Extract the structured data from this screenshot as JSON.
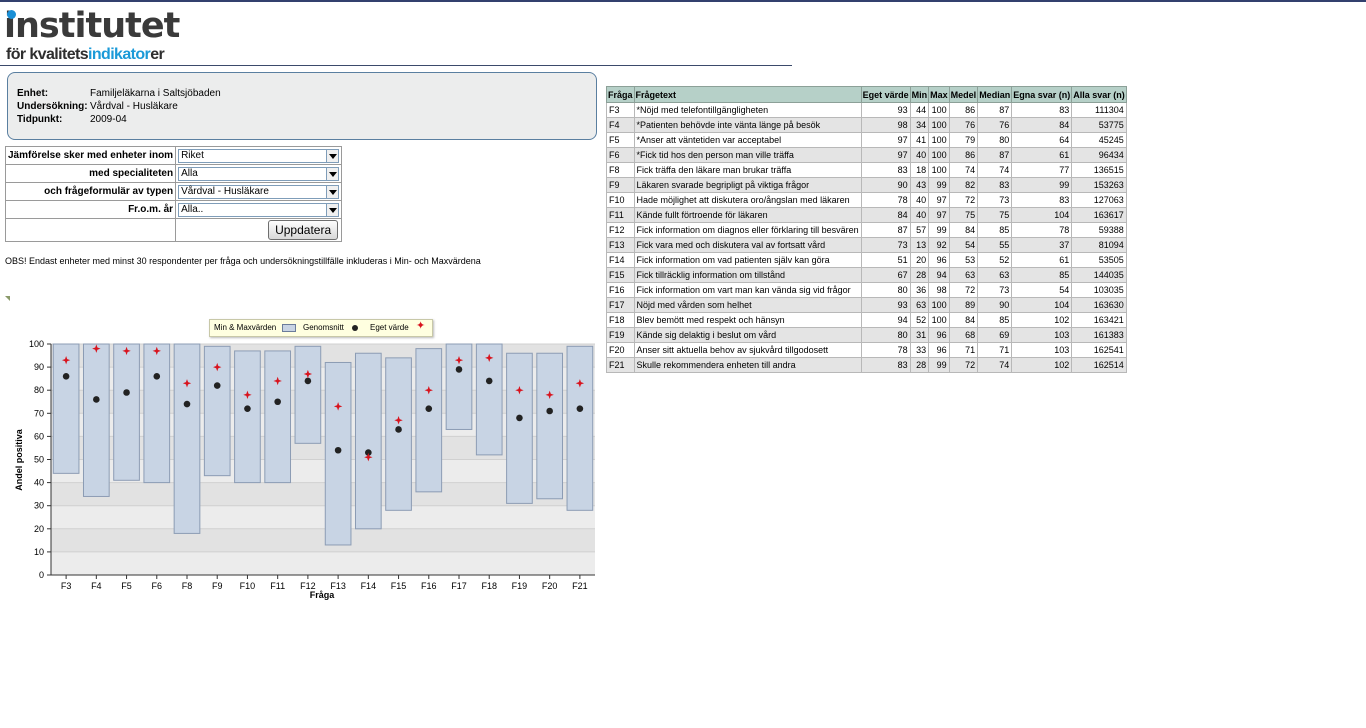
{
  "logo": {
    "line1": "institutet",
    "line2_pre": "för kvalitets",
    "line2_hl": "indikator",
    "line2_post": "er"
  },
  "info": {
    "enhet_label": "Enhet:",
    "enhet_value": "Familjeläkarna i Saltsjöbaden",
    "undersokning_label": "Undersökning:",
    "undersokning_value": "Vårdval - Husläkare",
    "tidpunkt_label": "Tidpunkt:",
    "tidpunkt_value": "2009-04"
  },
  "filters": {
    "compare_label": "Jämförelse sker med enheter inom",
    "compare_value": "Riket",
    "specialty_label": "med specialiteten",
    "specialty_value": "Alla",
    "formtype_label": "och frågeformulär av typen",
    "formtype_value": "Vårdval - Husläkare",
    "year_label": "Fr.o.m. år",
    "year_value": "Alla..",
    "update_button": "Uppdatera"
  },
  "note": "OBS! Endast enheter med minst 30 respondenter per fråga och undersökningstillfälle inkluderas i Min- och Maxvärdena",
  "legend": {
    "minmax": "Min & Maxvärden",
    "avg": "Genomsnitt",
    "own": "Eget värde"
  },
  "chart_data": {
    "type": "bar",
    "xlabel": "Fråga",
    "ylabel": "Andel positiva",
    "ylim": [
      0,
      100
    ],
    "yticks": [
      0,
      10,
      20,
      30,
      40,
      50,
      60,
      70,
      80,
      90,
      100
    ],
    "categories": [
      "F3",
      "F4",
      "F5",
      "F6",
      "F8",
      "F9",
      "F10",
      "F11",
      "F12",
      "F13",
      "F14",
      "F15",
      "F16",
      "F17",
      "F18",
      "F19",
      "F20",
      "F21"
    ],
    "series": [
      {
        "name": "Min & Maxvärden",
        "min": [
          44,
          34,
          41,
          40,
          18,
          43,
          40,
          40,
          57,
          13,
          20,
          28,
          36,
          63,
          52,
          31,
          33,
          28
        ],
        "max": [
          100,
          100,
          100,
          100,
          100,
          99,
          97,
          97,
          99,
          92,
          96,
          94,
          98,
          100,
          100,
          96,
          96,
          99
        ]
      },
      {
        "name": "Genomsnitt",
        "values": [
          86,
          76,
          79,
          86,
          74,
          82,
          72,
          75,
          84,
          54,
          53,
          63,
          72,
          89,
          84,
          68,
          71,
          72
        ]
      },
      {
        "name": "Eget värde",
        "values": [
          93,
          98,
          97,
          97,
          83,
          90,
          78,
          84,
          87,
          73,
          51,
          67,
          80,
          93,
          94,
          80,
          78,
          83
        ]
      }
    ],
    "colors": {
      "range_fill": "#c8d4e4",
      "range_stroke": "#8c9cb4",
      "avg": "#222222",
      "own": "#d8141e"
    }
  },
  "table": {
    "headers": [
      "Fråga",
      "Frågetext",
      "Eget värde",
      "Min",
      "Max",
      "Medel",
      "Median",
      "Egna svar (n)",
      "Alla svar (n)"
    ],
    "rows": [
      [
        "F3",
        "*Nöjd med telefontillgängligheten",
        "93",
        "44",
        "100",
        "86",
        "87",
        "83",
        "111304"
      ],
      [
        "F4",
        "*Patienten behövde inte vänta länge på besök",
        "98",
        "34",
        "100",
        "76",
        "76",
        "84",
        "53775"
      ],
      [
        "F5",
        "*Anser att väntetiden var acceptabel",
        "97",
        "41",
        "100",
        "79",
        "80",
        "64",
        "45245"
      ],
      [
        "F6",
        "*Fick tid hos den person man ville träffa",
        "97",
        "40",
        "100",
        "86",
        "87",
        "61",
        "96434"
      ],
      [
        "F8",
        "Fick träffa den läkare man brukar träffa",
        "83",
        "18",
        "100",
        "74",
        "74",
        "77",
        "136515"
      ],
      [
        "F9",
        "Läkaren svarade begripligt på viktiga frågor",
        "90",
        "43",
        "99",
        "82",
        "83",
        "99",
        "153263"
      ],
      [
        "F10",
        "Hade möjlighet att diskutera oro/ångslan med läkaren",
        "78",
        "40",
        "97",
        "72",
        "73",
        "83",
        "127063"
      ],
      [
        "F11",
        "Kände fullt förtroende för läkaren",
        "84",
        "40",
        "97",
        "75",
        "75",
        "104",
        "163617"
      ],
      [
        "F12",
        "Fick information om diagnos eller förklaring till besvären",
        "87",
        "57",
        "99",
        "84",
        "85",
        "78",
        "59388"
      ],
      [
        "F13",
        "Fick vara med och diskutera val av fortsatt vård",
        "73",
        "13",
        "92",
        "54",
        "55",
        "37",
        "81094"
      ],
      [
        "F14",
        "Fick information om vad patienten själv kan göra",
        "51",
        "20",
        "96",
        "53",
        "52",
        "61",
        "53505"
      ],
      [
        "F15",
        "Fick tillräcklig information om tillstånd",
        "67",
        "28",
        "94",
        "63",
        "63",
        "85",
        "144035"
      ],
      [
        "F16",
        "Fick information om vart man kan vända sig vid frågor",
        "80",
        "36",
        "98",
        "72",
        "73",
        "54",
        "103035"
      ],
      [
        "F17",
        "Nöjd med vården som helhet",
        "93",
        "63",
        "100",
        "89",
        "90",
        "104",
        "163630"
      ],
      [
        "F18",
        "Blev bemött med respekt och hänsyn",
        "94",
        "52",
        "100",
        "84",
        "85",
        "102",
        "163421"
      ],
      [
        "F19",
        "Kände sig delaktig i beslut om vård",
        "80",
        "31",
        "96",
        "68",
        "69",
        "103",
        "161383"
      ],
      [
        "F20",
        "Anser sitt aktuella behov av sjukvård tillgodosett",
        "78",
        "33",
        "96",
        "71",
        "71",
        "103",
        "162541"
      ],
      [
        "F21",
        "Skulle rekommendera enheten till andra",
        "83",
        "28",
        "99",
        "72",
        "74",
        "102",
        "162514"
      ]
    ]
  }
}
